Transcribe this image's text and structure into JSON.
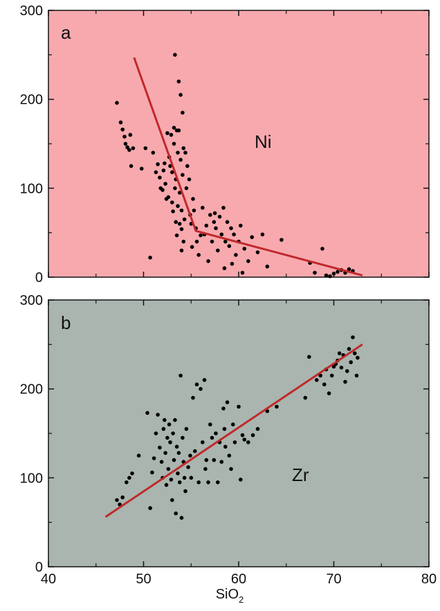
{
  "colors": {
    "panel_a_bg": "#f7a9ae",
    "panel_b_bg": "#a9b5ae",
    "fit_line": "#c0282b",
    "points": "#000000"
  },
  "chart_data": [
    {
      "type": "scatter",
      "panel_label": "a",
      "element_label": "Ni",
      "xlim": [
        40,
        80
      ],
      "ylim": [
        0,
        300
      ],
      "y_ticks": [
        "0",
        "100",
        "200",
        "300"
      ],
      "x_ticks": [],
      "xlabel": "",
      "ylabel": "",
      "fit_line": {
        "x": [
          49,
          55.5,
          73
        ],
        "y": [
          247,
          52,
          2
        ]
      },
      "points": [
        [
          47.2,
          196
        ],
        [
          47.6,
          174
        ],
        [
          47.8,
          166
        ],
        [
          48.0,
          158
        ],
        [
          48.1,
          150
        ],
        [
          48.3,
          146
        ],
        [
          48.5,
          143
        ],
        [
          48.6,
          160
        ],
        [
          48.7,
          125
        ],
        [
          48.9,
          145
        ],
        [
          49.8,
          122
        ],
        [
          50.2,
          145
        ],
        [
          50.7,
          22
        ],
        [
          51.0,
          140
        ],
        [
          51.3,
          118
        ],
        [
          51.5,
          127
        ],
        [
          51.7,
          112
        ],
        [
          51.8,
          100
        ],
        [
          52.0,
          98
        ],
        [
          52.1,
          120
        ],
        [
          52.2,
          128
        ],
        [
          52.3,
          105
        ],
        [
          52.4,
          88
        ],
        [
          52.5,
          162
        ],
        [
          52.6,
          90
        ],
        [
          52.7,
          135
        ],
        [
          52.8,
          125
        ],
        [
          52.9,
          160
        ],
        [
          53.0,
          84
        ],
        [
          53.0,
          118
        ],
        [
          53.1,
          74
        ],
        [
          53.2,
          150
        ],
        [
          53.2,
          168
        ],
        [
          53.3,
          100
        ],
        [
          53.3,
          250
        ],
        [
          53.4,
          62
        ],
        [
          53.4,
          110
        ],
        [
          53.5,
          47
        ],
        [
          53.5,
          165
        ],
        [
          53.6,
          140
        ],
        [
          53.6,
          80
        ],
        [
          53.7,
          220
        ],
        [
          53.7,
          165
        ],
        [
          53.8,
          60
        ],
        [
          53.8,
          95
        ],
        [
          53.9,
          205
        ],
        [
          53.9,
          132
        ],
        [
          54.0,
          30
        ],
        [
          54.0,
          54
        ],
        [
          54.0,
          75
        ],
        [
          54.1,
          185
        ],
        [
          54.1,
          115
        ],
        [
          54.2,
          40
        ],
        [
          54.2,
          145
        ],
        [
          54.3,
          65
        ],
        [
          54.4,
          140
        ],
        [
          54.5,
          100
        ],
        [
          54.6,
          125
        ],
        [
          54.8,
          110
        ],
        [
          54.9,
          70
        ],
        [
          55.0,
          60
        ],
        [
          55.1,
          34
        ],
        [
          55.2,
          88
        ],
        [
          55.3,
          75
        ],
        [
          55.5,
          55
        ],
        [
          55.6,
          40
        ],
        [
          55.8,
          25
        ],
        [
          56.0,
          47
        ],
        [
          56.2,
          78
        ],
        [
          56.4,
          48
        ],
        [
          56.6,
          58
        ],
        [
          56.8,
          18
        ],
        [
          57.0,
          70
        ],
        [
          57.2,
          40
        ],
        [
          57.4,
          62
        ],
        [
          57.5,
          72
        ],
        [
          57.6,
          55
        ],
        [
          57.8,
          30
        ],
        [
          58.0,
          68
        ],
        [
          58.2,
          48
        ],
        [
          58.4,
          78
        ],
        [
          58.5,
          10
        ],
        [
          58.6,
          40
        ],
        [
          58.8,
          62
        ],
        [
          59.0,
          35
        ],
        [
          59.2,
          55
        ],
        [
          59.3,
          15
        ],
        [
          59.5,
          48
        ],
        [
          59.7,
          25
        ],
        [
          60.0,
          40
        ],
        [
          60.2,
          58
        ],
        [
          60.4,
          5
        ],
        [
          60.6,
          32
        ],
        [
          61.0,
          18
        ],
        [
          61.4,
          45
        ],
        [
          62.0,
          28
        ],
        [
          62.5,
          48
        ],
        [
          63.0,
          12
        ],
        [
          64.5,
          42
        ],
        [
          67.5,
          16
        ],
        [
          68.0,
          5
        ],
        [
          68.8,
          32
        ],
        [
          69.2,
          2
        ],
        [
          69.6,
          1
        ],
        [
          70.0,
          4
        ],
        [
          70.4,
          6
        ],
        [
          70.8,
          8
        ],
        [
          71.2,
          5
        ],
        [
          71.6,
          9
        ],
        [
          72.0,
          7
        ]
      ]
    },
    {
      "type": "scatter",
      "panel_label": "b",
      "element_label": "Zr",
      "xlim": [
        40,
        80
      ],
      "ylim": [
        0,
        300
      ],
      "y_ticks": [
        "0",
        "100",
        "200",
        "300"
      ],
      "x_ticks": [
        "40",
        "50",
        "60",
        "70",
        "80"
      ],
      "xlabel": "SiO",
      "xlabel_sub": "2",
      "ylabel": "",
      "fit_line": {
        "x": [
          46,
          73
        ],
        "y": [
          56,
          250
        ]
      },
      "points": [
        [
          47.2,
          75
        ],
        [
          47.5,
          70
        ],
        [
          47.8,
          78
        ],
        [
          48.2,
          95
        ],
        [
          48.5,
          100
        ],
        [
          48.8,
          105
        ],
        [
          49.5,
          125
        ],
        [
          50.4,
          173
        ],
        [
          50.7,
          66
        ],
        [
          50.9,
          106
        ],
        [
          51.1,
          122
        ],
        [
          51.3,
          150
        ],
        [
          51.5,
          171
        ],
        [
          51.7,
          134
        ],
        [
          51.9,
          118
        ],
        [
          52.0,
          100
        ],
        [
          52.1,
          155
        ],
        [
          52.2,
          165
        ],
        [
          52.3,
          128
        ],
        [
          52.4,
          92
        ],
        [
          52.5,
          145
        ],
        [
          52.6,
          110
        ],
        [
          52.7,
          160
        ],
        [
          52.8,
          140
        ],
        [
          52.9,
          98
        ],
        [
          53.0,
          75
        ],
        [
          53.1,
          150
        ],
        [
          53.2,
          120
        ],
        [
          53.3,
          165
        ],
        [
          53.4,
          60
        ],
        [
          53.5,
          135
        ],
        [
          53.6,
          105
        ],
        [
          53.7,
          128
        ],
        [
          53.8,
          95
        ],
        [
          53.9,
          215
        ],
        [
          54.0,
          55
        ],
        [
          54.1,
          145
        ],
        [
          54.2,
          118
        ],
        [
          54.3,
          100
        ],
        [
          54.4,
          85
        ],
        [
          54.5,
          155
        ],
        [
          54.7,
          112
        ],
        [
          54.9,
          125
        ],
        [
          55.0,
          100
        ],
        [
          55.2,
          190
        ],
        [
          55.4,
          130
        ],
        [
          55.6,
          205
        ],
        [
          55.8,
          95
        ],
        [
          56.0,
          200
        ],
        [
          56.2,
          140
        ],
        [
          56.4,
          210
        ],
        [
          56.5,
          110
        ],
        [
          56.6,
          120
        ],
        [
          56.8,
          95
        ],
        [
          57.0,
          160
        ],
        [
          57.2,
          145
        ],
        [
          57.4,
          120
        ],
        [
          57.6,
          150
        ],
        [
          57.8,
          95
        ],
        [
          58.0,
          140
        ],
        [
          58.2,
          118
        ],
        [
          58.4,
          178
        ],
        [
          58.5,
          155
        ],
        [
          58.6,
          135
        ],
        [
          58.8,
          185
        ],
        [
          59.0,
          125
        ],
        [
          59.2,
          110
        ],
        [
          59.4,
          160
        ],
        [
          59.6,
          140
        ],
        [
          60.0,
          180
        ],
        [
          60.2,
          98
        ],
        [
          60.4,
          148
        ],
        [
          60.6,
          143
        ],
        [
          61.0,
          140
        ],
        [
          61.5,
          148
        ],
        [
          62.0,
          155
        ],
        [
          63.0,
          175
        ],
        [
          64.0,
          180
        ],
        [
          67.0,
          190
        ],
        [
          67.4,
          236
        ],
        [
          68.2,
          210
        ],
        [
          68.6,
          215
        ],
        [
          69.0,
          205
        ],
        [
          69.2,
          222
        ],
        [
          69.5,
          195
        ],
        [
          69.8,
          215
        ],
        [
          70.0,
          225
        ],
        [
          70.2,
          228
        ],
        [
          70.4,
          232
        ],
        [
          70.6,
          240
        ],
        [
          70.8,
          224
        ],
        [
          71.0,
          238
        ],
        [
          71.2,
          208
        ],
        [
          71.4,
          220
        ],
        [
          71.6,
          245
        ],
        [
          71.8,
          230
        ],
        [
          72.0,
          258
        ],
        [
          72.2,
          240
        ],
        [
          72.4,
          215
        ],
        [
          72.5,
          235
        ]
      ]
    }
  ]
}
